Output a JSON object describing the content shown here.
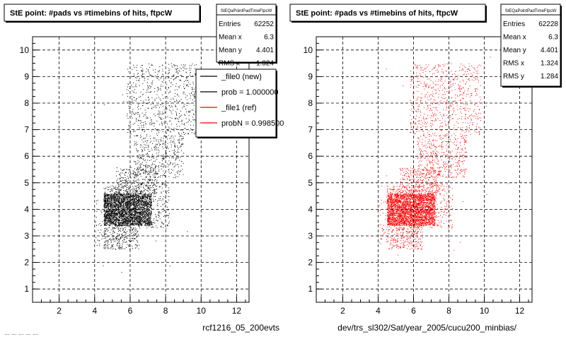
{
  "footer_text": "... ... ... ... ...",
  "chart_data": [
    {
      "type": "scatter",
      "title": "StE point: #pads vs #timebins of hits, ftpcW",
      "stats_title": "StEQaPointPadTimeFtpcW",
      "stats": [
        {
          "label": "Entries",
          "value": "62252"
        },
        {
          "label": "Mean x",
          "value": "6.3"
        },
        {
          "label": "Mean y",
          "value": "4.401"
        },
        {
          "label": "RMS x",
          "value": "1.324"
        }
      ],
      "legend": [
        {
          "label": "_file0 (new)",
          "color": "#000000"
        },
        {
          "label": "prob = 1.000000",
          "color": "#000000"
        },
        {
          "label": "_file1 (ref)",
          "color": "#ff0000"
        },
        {
          "label": "probN = 0.998500",
          "color": "#ff0000"
        }
      ],
      "xlabel": "rcf1216_05_200evts",
      "ylabel": "",
      "xlim": [
        0.5,
        12.7
      ],
      "ylim": [
        0.5,
        10.5
      ],
      "xticks": [
        2,
        4,
        6,
        8,
        10,
        12
      ],
      "yticks": [
        1,
        2,
        3,
        4,
        5,
        6,
        7,
        8,
        9,
        10
      ],
      "grid": true,
      "marker_color": "#000000",
      "regions": [
        {
          "x": [
            4.5,
            7.2
          ],
          "y": [
            3.4,
            4.6
          ],
          "density": 1400
        },
        {
          "x": [
            4.5,
            6.5
          ],
          "y": [
            2.5,
            4.9
          ],
          "density": 300
        },
        {
          "x": [
            5.2,
            7.5
          ],
          "y": [
            4.6,
            5.6
          ],
          "density": 230
        },
        {
          "x": [
            4.0,
            4.6
          ],
          "y": [
            2.6,
            4.5
          ],
          "density": 60
        },
        {
          "x": [
            6.5,
            8.2
          ],
          "y": [
            3.3,
            5.0
          ],
          "density": 140
        },
        {
          "x": [
            6.2,
            9.0
          ],
          "y": [
            5.2,
            6.8
          ],
          "density": 170
        },
        {
          "x": [
            5.8,
            9.8
          ],
          "y": [
            6.8,
            9.5
          ],
          "density": 110
        },
        {
          "x": [
            3.5,
            11.5
          ],
          "y": [
            1.5,
            10.3
          ],
          "density": 0.6
        }
      ]
    },
    {
      "type": "scatter",
      "title": "StE point: #pads vs #timebins of hits, ftpcW",
      "stats_title": "StEQaPointPadTimeFtpcW",
      "stats": [
        {
          "label": "Entries",
          "value": "62228"
        },
        {
          "label": "Mean x",
          "value": "6.3"
        },
        {
          "label": "Mean y",
          "value": "4.401"
        },
        {
          "label": "RMS x",
          "value": "1.324"
        },
        {
          "label": "RMS y",
          "value": "1.284"
        }
      ],
      "legend": [],
      "xlabel": "dev/trs_sl302/Sat/year_2005/cucu200_minbias/",
      "ylabel": "",
      "xlim": [
        0.5,
        12.7
      ],
      "ylim": [
        0.5,
        10.5
      ],
      "xticks": [
        2,
        4,
        6,
        8,
        10,
        12
      ],
      "yticks": [
        1,
        2,
        3,
        4,
        5,
        6,
        7,
        8,
        9,
        10
      ],
      "grid": true,
      "marker_color": "#ff0000",
      "regions": [
        {
          "x": [
            4.5,
            7.2
          ],
          "y": [
            3.4,
            4.6
          ],
          "density": 1400
        },
        {
          "x": [
            4.5,
            6.5
          ],
          "y": [
            2.5,
            4.9
          ],
          "density": 300
        },
        {
          "x": [
            5.2,
            7.5
          ],
          "y": [
            4.6,
            5.6
          ],
          "density": 230
        },
        {
          "x": [
            4.0,
            4.6
          ],
          "y": [
            2.6,
            4.5
          ],
          "density": 60
        },
        {
          "x": [
            6.5,
            8.2
          ],
          "y": [
            3.3,
            5.0
          ],
          "density": 140
        },
        {
          "x": [
            6.2,
            9.0
          ],
          "y": [
            5.2,
            6.8
          ],
          "density": 170
        },
        {
          "x": [
            5.8,
            9.8
          ],
          "y": [
            6.8,
            9.5
          ],
          "density": 110
        },
        {
          "x": [
            3.5,
            11.5
          ],
          "y": [
            1.5,
            10.3
          ],
          "density": 0.6
        }
      ]
    }
  ]
}
